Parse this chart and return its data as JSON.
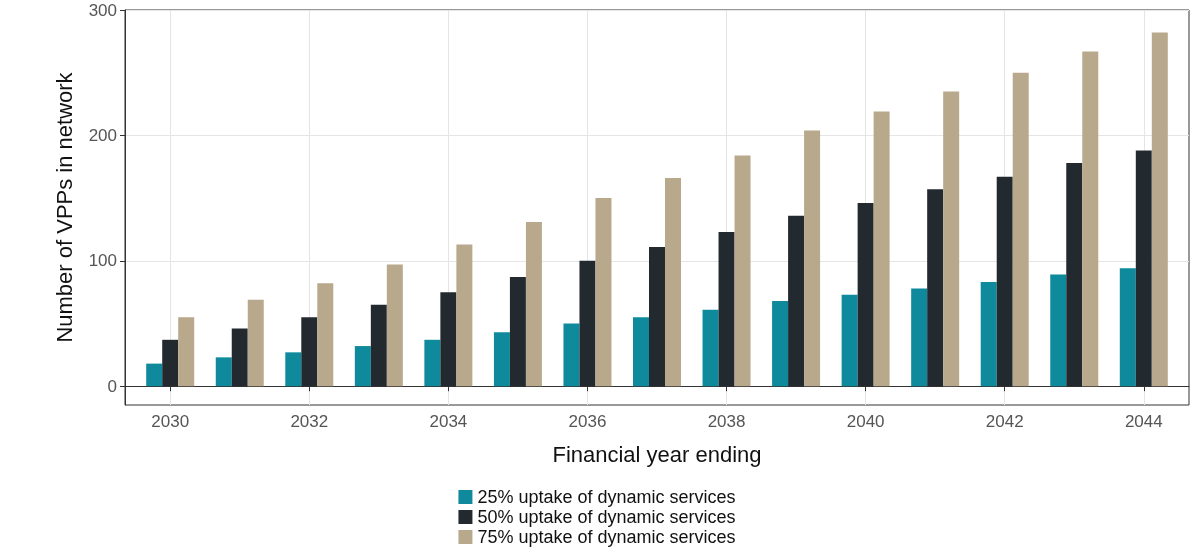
{
  "chart_data": {
    "type": "bar",
    "xlabel": "Financial year ending",
    "ylabel": "Number of VPPs in network",
    "x": [
      2030,
      2031,
      2032,
      2033,
      2034,
      2035,
      2036,
      2037,
      2038,
      2039,
      2040,
      2041,
      2042,
      2043,
      2044
    ],
    "xlim": [
      2029.35,
      2044.65
    ],
    "xticks": [
      2030,
      2032,
      2034,
      2036,
      2038,
      2040,
      2042,
      2044
    ],
    "ylim": [
      -15,
      300
    ],
    "yticks": [
      0,
      100,
      200,
      300
    ],
    "grid": true,
    "legend": "bottom",
    "series": [
      {
        "name": "25% uptake of dynamic services",
        "color": "#0e8a9c",
        "values": [
          18,
          23,
          27,
          32,
          37,
          43,
          50,
          55,
          61,
          68,
          73,
          78,
          83,
          89,
          94
        ]
      },
      {
        "name": "50% uptake of dynamic services",
        "color": "#222a30",
        "values": [
          37,
          46,
          55,
          65,
          75,
          87,
          100,
          111,
          123,
          136,
          146,
          157,
          167,
          178,
          188
        ]
      },
      {
        "name": "75% uptake of dynamic services",
        "color": "#b8a98c",
        "values": [
          55,
          69,
          82,
          97,
          113,
          131,
          150,
          166,
          184,
          204,
          219,
          235,
          250,
          267,
          282
        ]
      }
    ]
  }
}
